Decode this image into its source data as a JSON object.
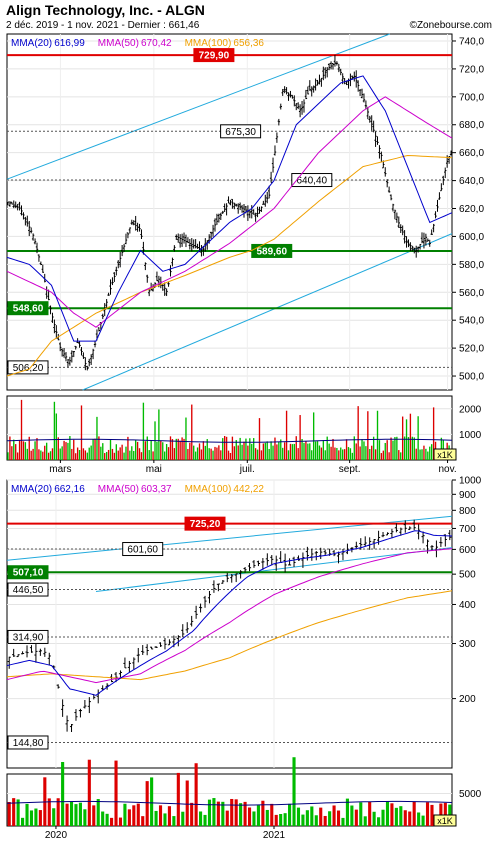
{
  "header": {
    "title": "Align Technology, Inc. - ALGN",
    "subtitle": "2 déc. 2019 - 1 nov. 2021 - Dernier : 661,46",
    "brand": "©Zonebourse.com"
  },
  "colors": {
    "mma20": "#0000cc",
    "mma50": "#cc00cc",
    "mma100": "#f0a000",
    "resistance": "#e00000",
    "support": "#008000",
    "channel": "#22aadd",
    "vol_up": "#00bb00",
    "vol_down": "#dd0000",
    "vol_avg": "#000080"
  },
  "chart_data": [
    {
      "type": "candlestick",
      "panel": "daily",
      "legend": [
        {
          "label": "MMA(20)",
          "value": "616,99",
          "color": "#0000cc"
        },
        {
          "label": "MMA(50)",
          "value": "670,42",
          "color": "#cc00cc"
        },
        {
          "label": "MMA(100)",
          "value": "656,36",
          "color": "#f0a000"
        }
      ],
      "ylim": [
        490,
        745
      ],
      "y_ticks": [
        500,
        520,
        540,
        560,
        580,
        600,
        620,
        640,
        660,
        680,
        700,
        720,
        740
      ],
      "y_tick_labels": [
        "500,0",
        "520,0",
        "540,0",
        "560,0",
        "580,0",
        "600,0",
        "620,0",
        "640,0",
        "660,0",
        "680,0",
        "700,0",
        "720,0",
        "740,0"
      ],
      "x_labels": [
        {
          "label": "mars",
          "t": 0.12
        },
        {
          "label": "mai",
          "t": 0.33
        },
        {
          "label": "juil.",
          "t": 0.54
        },
        {
          "label": "sept.",
          "t": 0.77
        },
        {
          "label": "nov.",
          "t": 0.99
        }
      ],
      "levels": [
        {
          "label": "729,90",
          "value": 729.9,
          "kind": "resistance",
          "label_t": 0.42
        },
        {
          "label": "675,30",
          "value": 675.3,
          "kind": "dotted",
          "label_t": 0.48
        },
        {
          "label": "640,40",
          "value": 640.4,
          "kind": "dotted",
          "label_t": 0.64
        },
        {
          "label": "589,60",
          "value": 589.6,
          "kind": "support",
          "label_t": 0.55
        },
        {
          "label": "548,60",
          "value": 548.6,
          "kind": "support",
          "label_t": 0.0
        },
        {
          "label": "506,20",
          "value": 506.2,
          "kind": "dotted",
          "label_t": 0.0
        }
      ],
      "price_anchors": [
        [
          0,
          625
        ],
        [
          0.03,
          620
        ],
        [
          0.06,
          600
        ],
        [
          0.08,
          575
        ],
        [
          0.1,
          545
        ],
        [
          0.12,
          520
        ],
        [
          0.14,
          510
        ],
        [
          0.16,
          525
        ],
        [
          0.18,
          505
        ],
        [
          0.2,
          525
        ],
        [
          0.23,
          560
        ],
        [
          0.26,
          590
        ],
        [
          0.28,
          610
        ],
        [
          0.3,
          605
        ],
        [
          0.32,
          560
        ],
        [
          0.34,
          570
        ],
        [
          0.36,
          560
        ],
        [
          0.38,
          600
        ],
        [
          0.41,
          595
        ],
        [
          0.44,
          590
        ],
        [
          0.47,
          610
        ],
        [
          0.5,
          625
        ],
        [
          0.53,
          620
        ],
        [
          0.56,
          615
        ],
        [
          0.59,
          630
        ],
        [
          0.62,
          705
        ],
        [
          0.64,
          700
        ],
        [
          0.66,
          690
        ],
        [
          0.68,
          705
        ],
        [
          0.7,
          710
        ],
        [
          0.72,
          720
        ],
        [
          0.74,
          725
        ],
        [
          0.76,
          710
        ],
        [
          0.78,
          715
        ],
        [
          0.8,
          700
        ],
        [
          0.82,
          680
        ],
        [
          0.84,
          660
        ],
        [
          0.86,
          630
        ],
        [
          0.88,
          610
        ],
        [
          0.9,
          595
        ],
        [
          0.92,
          590
        ],
        [
          0.94,
          600
        ],
        [
          0.95,
          595
        ],
        [
          0.97,
          625
        ],
        [
          0.99,
          655
        ],
        [
          1.0,
          661.5
        ]
      ],
      "mma20_anchors": [
        [
          0,
          585
        ],
        [
          0.05,
          580
        ],
        [
          0.1,
          565
        ],
        [
          0.15,
          525
        ],
        [
          0.2,
          525
        ],
        [
          0.25,
          560
        ],
        [
          0.3,
          590
        ],
        [
          0.35,
          575
        ],
        [
          0.4,
          580
        ],
        [
          0.45,
          595
        ],
        [
          0.5,
          610
        ],
        [
          0.55,
          620
        ],
        [
          0.6,
          640
        ],
        [
          0.65,
          680
        ],
        [
          0.7,
          695
        ],
        [
          0.75,
          710
        ],
        [
          0.8,
          715
        ],
        [
          0.85,
          690
        ],
        [
          0.9,
          650
        ],
        [
          0.95,
          610
        ],
        [
          1.0,
          617
        ]
      ],
      "mma50_anchors": [
        [
          0,
          575
        ],
        [
          0.1,
          560
        ],
        [
          0.15,
          545
        ],
        [
          0.2,
          535
        ],
        [
          0.3,
          560
        ],
        [
          0.4,
          575
        ],
        [
          0.5,
          595
        ],
        [
          0.6,
          620
        ],
        [
          0.7,
          660
        ],
        [
          0.8,
          690
        ],
        [
          0.85,
          700
        ],
        [
          0.9,
          690
        ],
        [
          0.95,
          680
        ],
        [
          1.0,
          670.4
        ]
      ],
      "mma100_anchors": [
        [
          0,
          500
        ],
        [
          0.05,
          505
        ],
        [
          0.1,
          525
        ],
        [
          0.2,
          545
        ],
        [
          0.3,
          560
        ],
        [
          0.4,
          572
        ],
        [
          0.5,
          585
        ],
        [
          0.55,
          590
        ],
        [
          0.6,
          598
        ],
        [
          0.7,
          625
        ],
        [
          0.8,
          650
        ],
        [
          0.9,
          658
        ],
        [
          1.0,
          656.4
        ]
      ],
      "volume": {
        "ylim": [
          0,
          2500
        ],
        "y_ticks": [
          1000,
          2000
        ],
        "y_tick_labels": [
          "1000",
          "2000"
        ],
        "unit": "x1K",
        "average": 750
      }
    },
    {
      "type": "candlestick",
      "panel": "weekly",
      "legend": [
        {
          "label": "MMA(20)",
          "value": "662,16",
          "color": "#0000cc"
        },
        {
          "label": "MMA(50)",
          "value": "603,37",
          "color": "#cc00cc"
        },
        {
          "label": "MMA(100)",
          "value": "442,22",
          "color": "#f0a000"
        }
      ],
      "y_scale": "log",
      "ylim": [
        120,
        1000
      ],
      "y_ticks": [
        200,
        300,
        400,
        500,
        600,
        700,
        800,
        900,
        1000
      ],
      "y_tick_labels": [
        "200",
        "300",
        "400",
        "500",
        "600",
        "700",
        "800",
        "900",
        "1000"
      ],
      "x_labels": [
        {
          "label": "2020",
          "t": 0.11
        },
        {
          "label": "2021",
          "t": 0.6
        }
      ],
      "levels": [
        {
          "label": "725,20",
          "value": 725.2,
          "kind": "resistance",
          "label_t": 0.4
        },
        {
          "label": "601,60",
          "value": 601.6,
          "kind": "dotted",
          "label_t": 0.26
        },
        {
          "label": "507,10",
          "value": 507.1,
          "kind": "support",
          "label_t": 0.0
        },
        {
          "label": "446,50",
          "value": 446.5,
          "kind": "dotted",
          "label_t": 0.0
        },
        {
          "label": "314,90",
          "value": 314.9,
          "kind": "dotted",
          "label_t": 0.0
        },
        {
          "label": "144,80",
          "value": 144.8,
          "kind": "dotted",
          "label_t": 0.0
        }
      ],
      "price_anchors": [
        [
          0,
          270
        ],
        [
          0.04,
          280
        ],
        [
          0.08,
          285
        ],
        [
          0.1,
          270
        ],
        [
          0.12,
          200
        ],
        [
          0.14,
          160
        ],
        [
          0.16,
          180
        ],
        [
          0.2,
          205
        ],
        [
          0.24,
          230
        ],
        [
          0.3,
          280
        ],
        [
          0.36,
          300
        ],
        [
          0.4,
          325
        ],
        [
          0.44,
          400
        ],
        [
          0.47,
          460
        ],
        [
          0.5,
          490
        ],
        [
          0.54,
          520
        ],
        [
          0.57,
          545
        ],
        [
          0.6,
          560
        ],
        [
          0.63,
          530
        ],
        [
          0.67,
          570
        ],
        [
          0.7,
          590
        ],
        [
          0.74,
          575
        ],
        [
          0.78,
          610
        ],
        [
          0.82,
          640
        ],
        [
          0.86,
          680
        ],
        [
          0.89,
          700
        ],
        [
          0.92,
          705
        ],
        [
          0.94,
          650
        ],
        [
          0.96,
          600
        ],
        [
          0.98,
          640
        ],
        [
          1.0,
          661.5
        ]
      ],
      "mma20_anchors": [
        [
          0,
          255
        ],
        [
          0.05,
          265
        ],
        [
          0.1,
          255
        ],
        [
          0.14,
          215
        ],
        [
          0.2,
          205
        ],
        [
          0.28,
          245
        ],
        [
          0.36,
          285
        ],
        [
          0.42,
          330
        ],
        [
          0.48,
          410
        ],
        [
          0.54,
          490
        ],
        [
          0.6,
          540
        ],
        [
          0.66,
          560
        ],
        [
          0.72,
          575
        ],
        [
          0.8,
          610
        ],
        [
          0.86,
          650
        ],
        [
          0.92,
          690
        ],
        [
          0.96,
          665
        ],
        [
          1.0,
          662
        ]
      ],
      "mma50_anchors": [
        [
          0,
          230
        ],
        [
          0.08,
          245
        ],
        [
          0.14,
          235
        ],
        [
          0.2,
          225
        ],
        [
          0.3,
          240
        ],
        [
          0.4,
          285
        ],
        [
          0.5,
          350
        ],
        [
          0.6,
          430
        ],
        [
          0.7,
          490
        ],
        [
          0.8,
          540
        ],
        [
          0.9,
          585
        ],
        [
          1.0,
          603.4
        ]
      ],
      "mma100_anchors": [
        [
          0,
          235
        ],
        [
          0.1,
          240
        ],
        [
          0.2,
          235
        ],
        [
          0.3,
          230
        ],
        [
          0.4,
          245
        ],
        [
          0.5,
          270
        ],
        [
          0.6,
          310
        ],
        [
          0.7,
          350
        ],
        [
          0.8,
          385
        ],
        [
          0.9,
          420
        ],
        [
          1.0,
          442.2
        ]
      ],
      "volume": {
        "ylim": [
          0,
          8000
        ],
        "y_ticks": [
          5000
        ],
        "y_tick_labels": [
          "5000"
        ],
        "unit": "x1K",
        "average": 3500
      }
    }
  ]
}
